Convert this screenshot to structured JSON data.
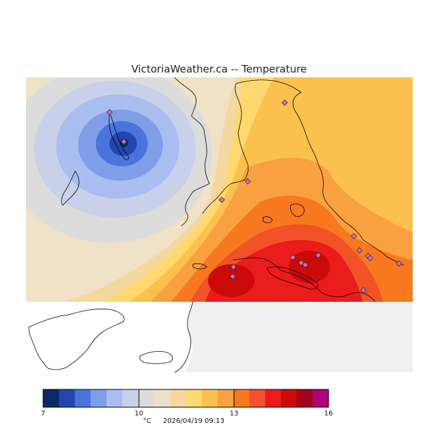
{
  "title": "VictoriaWeather.ca -- Temperature",
  "legend": {
    "unit": "°C",
    "timestamp": "2026/04/19 09:13",
    "ticks": [
      "7",
      "10",
      "13",
      "16"
    ],
    "colors": [
      "#0d2866",
      "#2546b0",
      "#4a74dc",
      "#7f9ee8",
      "#aabdf0",
      "#c8d0ea",
      "#dcdcdc",
      "#ebe0c8",
      "#f3d9a0",
      "#ffd870",
      "#fbc04e",
      "#f9a040",
      "#f87820",
      "#f25228",
      "#ea1c1c",
      "#cc0a0a",
      "#a6001c",
      "#b0007c"
    ]
  },
  "stations": [
    "s1",
    "s2",
    "s3",
    "s4",
    "s5",
    "s6",
    "s7",
    "s8",
    "s9",
    "s10",
    "s11",
    "s12",
    "s13",
    "s14",
    "s15",
    "s16",
    "s17"
  ]
}
